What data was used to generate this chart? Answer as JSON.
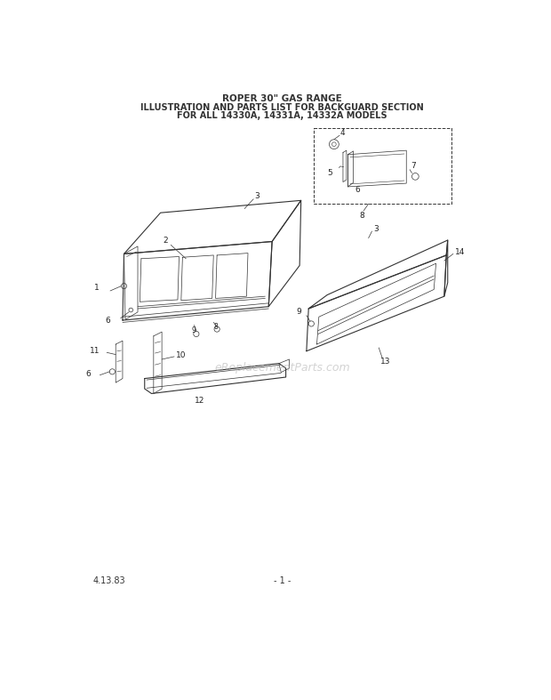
{
  "title_line1": "ROPER 30\" GAS RANGE",
  "title_line2": "ILLUSTRATION AND PARTS LIST FOR BACKGUARD SECTION",
  "title_line3": "FOR ALL 14330A, 14331A, 14332A MODELS",
  "footer_left": "4.13.83",
  "footer_center": "- 1 -",
  "watermark": "eReplacementParts.com",
  "background_color": "#ffffff",
  "line_color": "#333333",
  "label_color": "#222222"
}
